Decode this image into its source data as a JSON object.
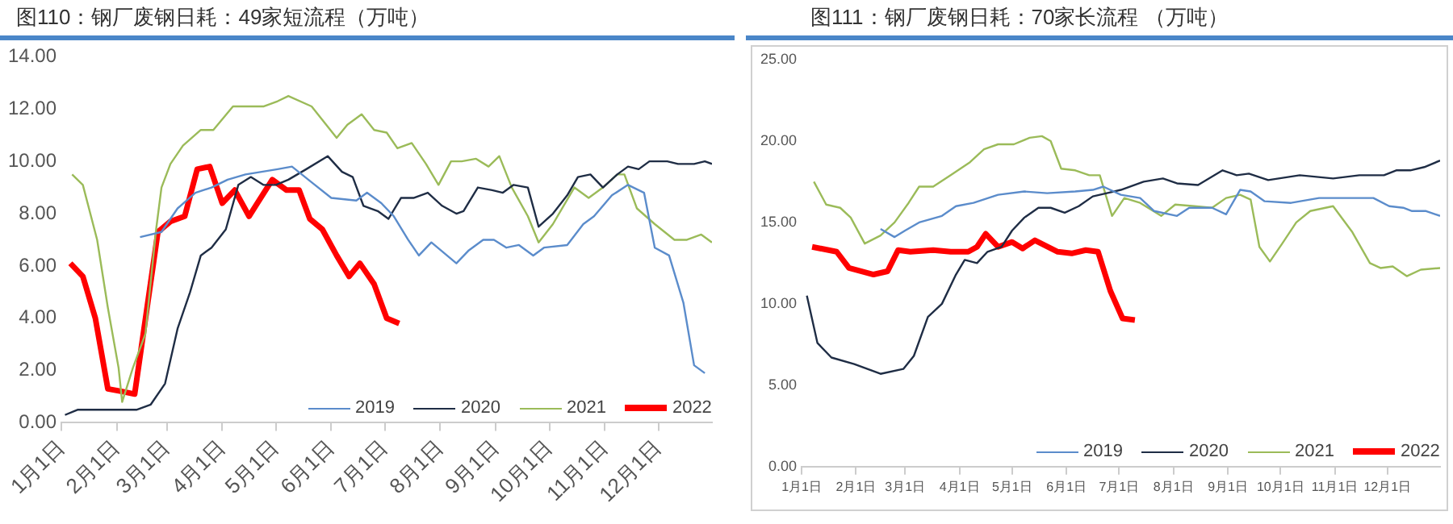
{
  "chart_data": [
    {
      "type": "line",
      "title": "图110：钢厂废钢日耗：49家短流程（万吨）",
      "legend": "bottom right",
      "xlim": [
        "--01-01",
        "--12-31"
      ],
      "xticks": [
        {
          "value": "--01-01",
          "label": "1月1日"
        },
        {
          "value": "--02-01",
          "label": "2月1日"
        },
        {
          "value": "--03-01",
          "label": "3月1日"
        },
        {
          "value": "--04-01",
          "label": "4月1日"
        },
        {
          "value": "--05-01",
          "label": "5月1日"
        },
        {
          "value": "--06-01",
          "label": "6月1日"
        },
        {
          "value": "--07-01",
          "label": "7月1日"
        },
        {
          "value": "--08-01",
          "label": "8月1日"
        },
        {
          "value": "--09-01",
          "label": "9月1日"
        },
        {
          "value": "--10-01",
          "label": "10月1日"
        },
        {
          "value": "--11-01",
          "label": "11月1日"
        },
        {
          "value": "--12-01",
          "label": "12月1日"
        }
      ],
      "ylim": [
        0,
        14
      ],
      "yticks": [
        {
          "value": 0,
          "label": "0.00"
        },
        {
          "value": 2,
          "label": "2.00"
        },
        {
          "value": 4,
          "label": "4.00"
        },
        {
          "value": 6,
          "label": "6.00"
        },
        {
          "value": 8,
          "label": "8.00"
        },
        {
          "value": 10,
          "label": "10.00"
        },
        {
          "value": 12,
          "label": "12.00"
        },
        {
          "value": 14,
          "label": "14.00"
        }
      ],
      "series": [
        {
          "name": "2019",
          "color": "#5b8ccb",
          "x": [
            "--02-14",
            "--02-26",
            "--03-07",
            "--03-17",
            "--03-26",
            "--04-04",
            "--04-14",
            "--04-23",
            "--05-02",
            "--05-10",
            "--05-21",
            "--06-01",
            "--06-15",
            "--06-21",
            "--06-29",
            "--07-06",
            "--07-14",
            "--07-20",
            "--07-27",
            "--08-03",
            "--08-10",
            "--08-17",
            "--08-25",
            "--08-31",
            "--09-07",
            "--09-14",
            "--09-22",
            "--09-28",
            "--10-11",
            "--10-20",
            "--10-26",
            "--11-05",
            "--11-14",
            "--11-23",
            "--11-29",
            "--12-07",
            "--12-15",
            "--12-21",
            "--12-27"
          ],
          "values": [
            7.1,
            7.3,
            8.2,
            8.8,
            9.0,
            9.3,
            9.5,
            9.6,
            9.7,
            9.8,
            9.2,
            8.6,
            8.5,
            8.8,
            8.4,
            7.9,
            7.0,
            6.4,
            6.9,
            6.5,
            6.1,
            6.6,
            7.0,
            7.0,
            6.7,
            6.8,
            6.4,
            6.7,
            6.8,
            7.6,
            7.9,
            8.7,
            9.1,
            8.8,
            6.7,
            6.4,
            4.6,
            2.2,
            1.9
          ]
        },
        {
          "name": "2020",
          "color": "#1f2d45",
          "x": [
            "--01-03",
            "--01-10",
            "--02-12",
            "--02-20",
            "--02-28",
            "--03-07",
            "--03-14",
            "--03-20",
            "--03-26",
            "--04-03",
            "--04-10",
            "--04-17",
            "--04-24",
            "--05-01",
            "--05-08",
            "--05-18",
            "--05-30",
            "--06-07",
            "--06-13",
            "--06-19",
            "--06-27",
            "--07-03",
            "--07-10",
            "--07-17",
            "--07-25",
            "--08-02",
            "--08-10",
            "--08-14",
            "--08-22",
            "--08-30",
            "--09-05",
            "--09-11",
            "--09-19",
            "--09-25",
            "--10-03",
            "--10-11",
            "--10-17",
            "--10-24",
            "--10-31",
            "--11-08",
            "--11-14",
            "--11-20",
            "--11-26",
            "--12-06",
            "--12-12",
            "--12-21",
            "--12-27",
            "--12-31"
          ],
          "values": [
            0.3,
            0.5,
            0.5,
            0.7,
            1.5,
            3.6,
            5.0,
            6.4,
            6.7,
            7.4,
            9.1,
            9.4,
            9.1,
            9.1,
            9.3,
            9.7,
            10.2,
            9.6,
            9.4,
            8.3,
            8.1,
            7.8,
            8.6,
            8.6,
            8.8,
            8.3,
            8.0,
            8.1,
            9.0,
            8.9,
            8.8,
            9.1,
            9.0,
            7.5,
            8.0,
            8.7,
            9.4,
            9.5,
            9.0,
            9.5,
            9.8,
            9.7,
            10.0,
            10.0,
            9.9,
            9.9,
            10.0,
            9.9
          ]
        },
        {
          "name": "2021",
          "color": "#9bbb59",
          "x": [
            "--01-07",
            "--01-13",
            "--01-21",
            "--01-27",
            "--02-02",
            "--02-04",
            "--02-10",
            "--02-17",
            "--02-23",
            "--02-26",
            "--03-03",
            "--03-10",
            "--03-20",
            "--03-27",
            "--04-07",
            "--04-17",
            "--04-24",
            "--05-02",
            "--05-08",
            "--05-21",
            "--06-04",
            "--06-10",
            "--06-18",
            "--06-25",
            "--07-02",
            "--07-08",
            "--07-16",
            "--07-24",
            "--07-31",
            "--08-07",
            "--08-13",
            "--08-21",
            "--08-28",
            "--09-03",
            "--09-10",
            "--09-19",
            "--09-25",
            "--10-03",
            "--10-15",
            "--10-23",
            "--10-31",
            "--11-08",
            "--11-12",
            "--11-19",
            "--11-29",
            "--12-10",
            "--12-17",
            "--12-25",
            "--12-31"
          ],
          "values": [
            9.5,
            9.1,
            7.0,
            4.4,
            2.1,
            0.8,
            2.1,
            3.4,
            7.4,
            9.0,
            9.9,
            10.6,
            11.2,
            11.2,
            12.1,
            12.1,
            12.1,
            12.3,
            12.5,
            12.1,
            10.9,
            11.4,
            11.8,
            11.2,
            11.1,
            10.5,
            10.7,
            9.9,
            9.1,
            10.0,
            10.0,
            10.1,
            9.8,
            10.2,
            9.0,
            7.9,
            6.9,
            7.6,
            9.0,
            8.6,
            9.0,
            9.5,
            9.5,
            8.2,
            7.6,
            7.0,
            7.0,
            7.2,
            6.9
          ]
        },
        {
          "name": "2022",
          "color": "#ff0000",
          "x": [
            "--01-06",
            "--01-13",
            "--01-20",
            "--01-27",
            "--02-04",
            "--02-11",
            "--02-24",
            "--03-03",
            "--03-11",
            "--03-18",
            "--03-25",
            "--04-01",
            "--04-08",
            "--04-16",
            "--04-29",
            "--05-07",
            "--05-14",
            "--05-20",
            "--05-27",
            "--06-04",
            "--06-11",
            "--06-17",
            "--06-25",
            "--07-02",
            "--07-09"
          ],
          "values": [
            6.1,
            5.6,
            4.0,
            1.3,
            1.2,
            1.1,
            7.3,
            7.7,
            7.9,
            9.7,
            9.8,
            8.4,
            8.9,
            7.9,
            9.3,
            8.9,
            8.9,
            7.8,
            7.4,
            6.4,
            5.6,
            6.1,
            5.3,
            4.0,
            3.8
          ]
        }
      ]
    },
    {
      "type": "line",
      "title": "图111：钢厂废钢日耗：70家长流程 （万吨）",
      "legend": "bottom right",
      "xlim": [
        "--01-01",
        "--12-31"
      ],
      "xticks": [
        {
          "value": "--01-01",
          "label": "1月1日"
        },
        {
          "value": "--02-01",
          "label": "2月1日"
        },
        {
          "value": "--03-01",
          "label": "3月1日"
        },
        {
          "value": "--04-01",
          "label": "4月1日"
        },
        {
          "value": "--05-01",
          "label": "5月1日"
        },
        {
          "value": "--06-01",
          "label": "6月1日"
        },
        {
          "value": "--07-01",
          "label": "7月1日"
        },
        {
          "value": "--08-01",
          "label": "8月1日"
        },
        {
          "value": "--09-01",
          "label": "9月1日"
        },
        {
          "value": "--10-01",
          "label": "10月1日"
        },
        {
          "value": "--11-01",
          "label": "11月1日"
        },
        {
          "value": "--12-01",
          "label": "12月1日"
        }
      ],
      "ylim": [
        0,
        25
      ],
      "yticks": [
        {
          "value": 0,
          "label": "0.00"
        },
        {
          "value": 5,
          "label": "5.00"
        },
        {
          "value": 10,
          "label": "10.00"
        },
        {
          "value": 15,
          "label": "15.00"
        },
        {
          "value": 20,
          "label": "20.00"
        },
        {
          "value": 25,
          "label": "25.00"
        }
      ],
      "series": [
        {
          "name": "2019",
          "color": "#5b8ccb",
          "x": [
            "--02-15",
            "--02-23",
            "--03-01",
            "--03-09",
            "--03-22",
            "--03-30",
            "--04-09",
            "--04-23",
            "--05-08",
            "--05-21",
            "--06-06",
            "--06-16",
            "--06-22",
            "--07-02",
            "--07-13",
            "--07-21",
            "--08-03",
            "--08-10",
            "--08-23",
            "--08-31",
            "--09-08",
            "--09-14",
            "--09-22",
            "--10-07",
            "--10-23",
            "--11-08",
            "--11-23",
            "--12-02",
            "--12-10",
            "--12-15",
            "--12-23",
            "--12-31"
          ],
          "values": [
            14.6,
            14.1,
            14.5,
            15.0,
            15.4,
            16.0,
            16.2,
            16.7,
            16.9,
            16.8,
            16.9,
            17.0,
            17.2,
            16.7,
            16.5,
            15.7,
            15.4,
            15.9,
            15.9,
            15.5,
            17.0,
            16.9,
            16.3,
            16.2,
            16.5,
            16.5,
            16.5,
            16.0,
            15.9,
            15.7,
            15.7,
            15.4
          ]
        },
        {
          "name": "2020",
          "color": "#1f2d45",
          "x": [
            "--01-04",
            "--01-10",
            "--01-18",
            "--01-31",
            "--02-15",
            "--02-28",
            "--03-06",
            "--03-14",
            "--03-22",
            "--03-30",
            "--04-04",
            "--04-11",
            "--04-17",
            "--04-25",
            "--05-01",
            "--05-08",
            "--05-16",
            "--05-23",
            "--05-31",
            "--06-08",
            "--06-16",
            "--06-24",
            "--07-02",
            "--07-15",
            "--07-26",
            "--08-03",
            "--08-15",
            "--08-29",
            "--09-06",
            "--09-13",
            "--09-24",
            "--10-12",
            "--10-31",
            "--11-15",
            "--11-29",
            "--12-06",
            "--12-14",
            "--12-22",
            "--12-31"
          ],
          "values": [
            10.5,
            7.6,
            6.7,
            6.3,
            5.7,
            6.0,
            6.8,
            9.2,
            10.0,
            11.8,
            12.7,
            12.5,
            13.2,
            13.5,
            14.5,
            15.3,
            15.9,
            15.9,
            15.6,
            16.0,
            16.6,
            16.8,
            17.0,
            17.5,
            17.7,
            17.4,
            17.3,
            18.2,
            17.9,
            18.0,
            17.6,
            17.9,
            17.7,
            17.9,
            17.9,
            18.2,
            18.2,
            18.4,
            18.8
          ]
        },
        {
          "name": "2021",
          "color": "#9bbb59",
          "x": [
            "--01-08",
            "--01-15",
            "--01-23",
            "--01-29",
            "--02-06",
            "--02-15",
            "--02-23",
            "--03-03",
            "--03-09",
            "--03-17",
            "--03-27",
            "--04-07",
            "--04-15",
            "--04-23",
            "--05-02",
            "--05-11",
            "--05-18",
            "--05-23",
            "--05-29",
            "--06-06",
            "--06-14",
            "--06-20",
            "--06-27",
            "--07-04",
            "--07-13",
            "--07-25",
            "--08-02",
            "--08-13",
            "--08-23",
            "--08-31",
            "--09-08",
            "--09-14",
            "--09-19",
            "--09-25",
            "--10-02",
            "--10-10",
            "--10-18",
            "--10-31",
            "--11-11",
            "--11-21",
            "--11-27",
            "--12-04",
            "--12-12",
            "--12-20",
            "--12-31"
          ],
          "values": [
            17.5,
            16.1,
            15.9,
            15.3,
            13.7,
            14.2,
            15.0,
            16.2,
            17.2,
            17.2,
            17.9,
            18.7,
            19.5,
            19.8,
            19.8,
            20.2,
            20.3,
            20.0,
            18.3,
            18.2,
            17.9,
            17.9,
            15.4,
            16.5,
            16.2,
            15.4,
            16.1,
            16.0,
            15.9,
            16.5,
            16.7,
            16.4,
            13.5,
            12.6,
            13.7,
            15.0,
            15.7,
            16.0,
            14.4,
            12.5,
            12.2,
            12.3,
            11.7,
            12.1,
            12.2
          ]
        },
        {
          "name": "2022",
          "color": "#ff0000",
          "x": [
            "--01-07",
            "--01-21",
            "--01-28",
            "--02-11",
            "--02-19",
            "--02-25",
            "--03-04",
            "--03-17",
            "--03-27",
            "--04-06",
            "--04-11",
            "--04-16",
            "--04-23",
            "--05-01",
            "--05-07",
            "--05-14",
            "--05-27",
            "--06-04",
            "--06-12",
            "--06-19",
            "--06-26",
            "--07-03",
            "--07-10"
          ],
          "values": [
            13.5,
            13.2,
            12.2,
            11.8,
            12.0,
            13.3,
            13.2,
            13.3,
            13.2,
            13.2,
            13.5,
            14.3,
            13.5,
            13.8,
            13.4,
            13.9,
            13.2,
            13.1,
            13.3,
            13.2,
            10.8,
            9.1,
            9.0
          ]
        }
      ]
    }
  ]
}
